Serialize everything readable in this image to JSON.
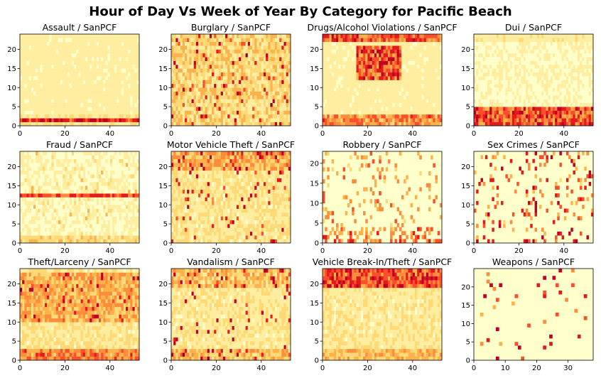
{
  "figure_title": "Hour of Day Vs Week of Year By Category for Pacific Beach",
  "colormap": [
    "#ffffcc",
    "#ffeda0",
    "#fed976",
    "#feb24c",
    "#fd8d3c",
    "#fc4e2a",
    "#e31a1c",
    "#bd0026",
    "#800026"
  ],
  "chart_data": [
    {
      "type": "heatmap",
      "title": "Assault / SanPCF",
      "xlim": [
        0,
        53
      ],
      "ylim": [
        0,
        24
      ],
      "xticks": [
        0,
        20,
        40
      ],
      "yticks": [
        0,
        5,
        10,
        15,
        20
      ],
      "pattern": "assault"
    },
    {
      "type": "heatmap",
      "title": "Burglary / SanPCF",
      "xlim": [
        0,
        53
      ],
      "ylim": [
        0,
        24
      ],
      "xticks": [
        0,
        20,
        40
      ],
      "yticks": [
        0,
        5,
        10,
        15,
        20
      ],
      "pattern": "burglary"
    },
    {
      "type": "heatmap",
      "title": "Drugs/Alcohol Violations / SanPCF",
      "xlim": [
        0,
        53
      ],
      "ylim": [
        0,
        24
      ],
      "xticks": [
        0,
        20,
        40
      ],
      "yticks": [
        0,
        5,
        10,
        15,
        20
      ],
      "pattern": "drugs"
    },
    {
      "type": "heatmap",
      "title": "Dui / SanPCF",
      "xlim": [
        0,
        53
      ],
      "ylim": [
        0,
        24
      ],
      "xticks": [
        0,
        20,
        40
      ],
      "yticks": [
        0,
        5,
        10,
        15,
        20
      ],
      "pattern": "dui"
    },
    {
      "type": "heatmap",
      "title": "Fraud / SanPCF",
      "xlim": [
        0,
        53
      ],
      "ylim": [
        0,
        24
      ],
      "xticks": [
        0,
        20,
        40
      ],
      "yticks": [
        0,
        5,
        10,
        15,
        20
      ],
      "pattern": "fraud"
    },
    {
      "type": "heatmap",
      "title": "Motor Vehicle Theft / SanPCF",
      "xlim": [
        0,
        53
      ],
      "ylim": [
        0,
        24
      ],
      "xticks": [
        0,
        20,
        40
      ],
      "yticks": [
        0,
        5,
        10,
        15,
        20
      ],
      "pattern": "mvtheft"
    },
    {
      "type": "heatmap",
      "title": "Robbery / SanPCF",
      "xlim": [
        0,
        53
      ],
      "ylim": [
        0,
        23
      ],
      "xticks": [
        0,
        20,
        40
      ],
      "yticks": [
        0,
        5,
        10,
        15,
        20
      ],
      "pattern": "robbery"
    },
    {
      "type": "heatmap",
      "title": "Sex Crimes / SanPCF",
      "xlim": [
        0,
        53
      ],
      "ylim": [
        0,
        24
      ],
      "xticks": [
        0,
        20,
        40
      ],
      "yticks": [
        0,
        5,
        10,
        15,
        20
      ],
      "pattern": "sex"
    },
    {
      "type": "heatmap",
      "title": "Theft/Larceny / SanPCF",
      "xlim": [
        0,
        53
      ],
      "ylim": [
        0,
        24
      ],
      "xticks": [
        0,
        20,
        40
      ],
      "yticks": [
        0,
        5,
        10,
        15,
        20
      ],
      "pattern": "theft"
    },
    {
      "type": "heatmap",
      "title": "Vandalism / SanPCF",
      "xlim": [
        0,
        53
      ],
      "ylim": [
        0,
        24
      ],
      "xticks": [
        0,
        20,
        40
      ],
      "yticks": [
        0,
        5,
        10,
        15,
        20
      ],
      "pattern": "vandalism"
    },
    {
      "type": "heatmap",
      "title": "Vehicle Break-In/Theft / SanPCF",
      "xlim": [
        0,
        53
      ],
      "ylim": [
        0,
        24
      ],
      "xticks": [
        0,
        20,
        40
      ],
      "yticks": [
        0,
        5,
        10,
        15,
        20
      ],
      "pattern": "breakin"
    },
    {
      "type": "heatmap",
      "title": "Weapons / SanPCF",
      "xlim": [
        0,
        38
      ],
      "ylim": [
        0,
        25
      ],
      "xticks": [
        0,
        10,
        20,
        30
      ],
      "yticks": [
        0,
        5,
        10,
        15,
        20
      ],
      "pattern": "weapons"
    }
  ]
}
